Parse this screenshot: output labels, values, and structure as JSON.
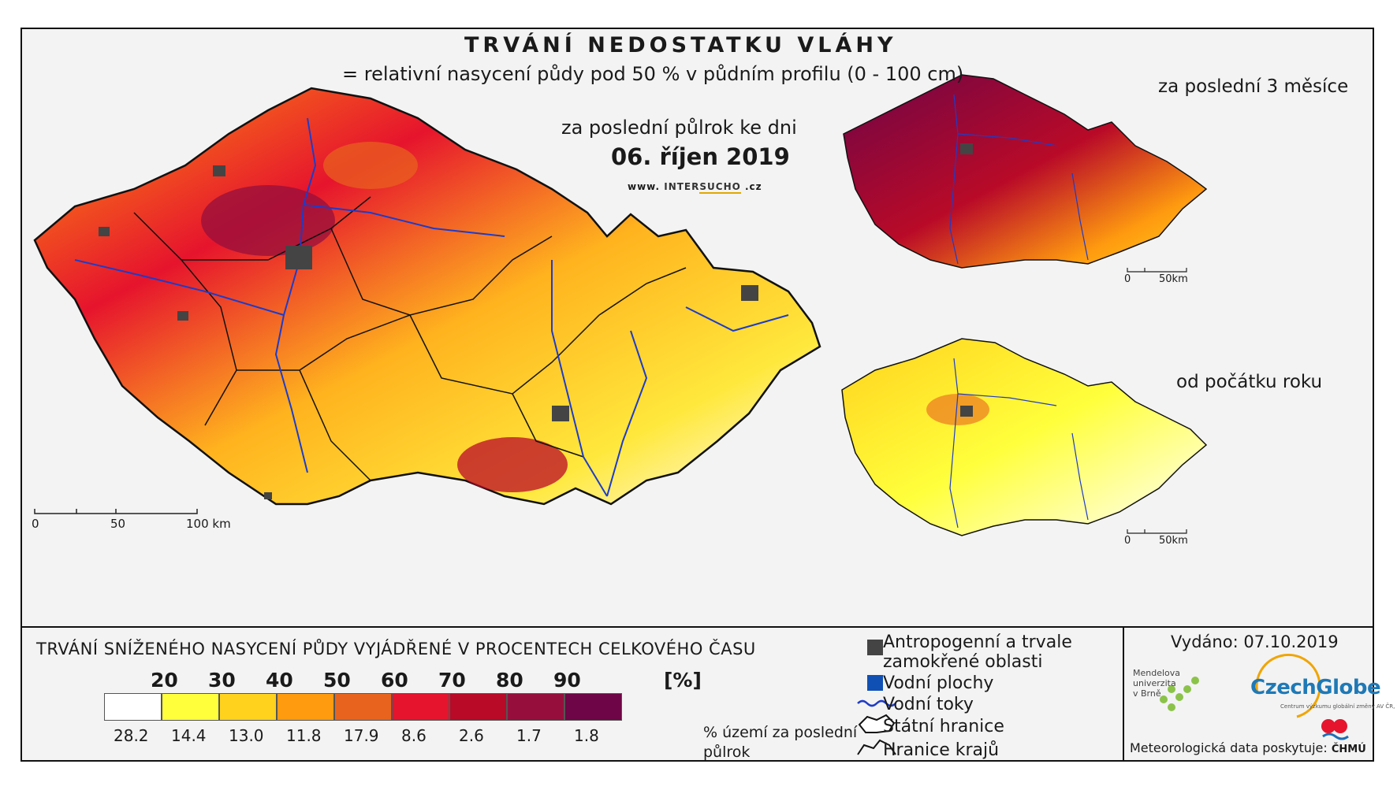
{
  "title": "TRVÁNÍ NEDOSTATKU VLÁHY",
  "subtitle": "= relativní nasycení půdy pod 50 % v půdním profilu (0 - 100 cm)",
  "period_label": "za poslední půlrok ke dni",
  "date": "06. říjen 2019",
  "website": {
    "prefix": "www. ",
    "brand_a": "INTER",
    "brand_b": "SUCHO",
    "suffix": " .cz"
  },
  "main_map": {
    "scale_ticks": [
      "0",
      "50",
      "100 km"
    ]
  },
  "insets": [
    {
      "title": "za poslední 3 měsíce",
      "scale_ticks": [
        "0",
        "50km"
      ]
    },
    {
      "title": "od počátku roku",
      "scale_ticks": [
        "0",
        "50km"
      ]
    }
  ],
  "legend": {
    "title": "TRVÁNÍ SNÍŽENÉHO NASYCENÍ PŮDY VYJÁDŘENÉ V PROCENTECH CELKOVÉHO ČASU",
    "thresholds": [
      "20",
      "30",
      "40",
      "50",
      "60",
      "70",
      "80",
      "90"
    ],
    "unit": "[%]",
    "classes": [
      {
        "color": "#ffffff",
        "share": "28.2"
      },
      {
        "color": "#ffff3c",
        "share": "14.4"
      },
      {
        "color": "#ffd21e",
        "share": "13.0"
      },
      {
        "color": "#ff9b0f",
        "share": "11.8"
      },
      {
        "color": "#e8641e",
        "share": "17.9"
      },
      {
        "color": "#e6142d",
        "share": "8.6"
      },
      {
        "color": "#b90a28",
        "share": "2.6"
      },
      {
        "color": "#960f3c",
        "share": "1.7"
      },
      {
        "color": "#6e0546",
        "share": "1.8"
      }
    ],
    "area_label": "% území za poslední půlrok"
  },
  "key": [
    {
      "icon": "urban-area-icon",
      "label_line1": "Antropogenní a trvale",
      "label_line2": "zamokřené oblasti"
    },
    {
      "icon": "water-body-icon",
      "label": "Vodní plochy"
    },
    {
      "icon": "river-icon",
      "label": "Vodní toky"
    },
    {
      "icon": "state-border-icon",
      "label": "Státní hranice"
    },
    {
      "icon": "region-border-icon",
      "label": "Hranice krajů"
    }
  ],
  "issued": "Vydáno: 07.10.2019",
  "logos": {
    "mendel": [
      "Mendelova",
      "univerzita",
      "v Brně"
    ],
    "czechglobe": "CzechGlobe",
    "czechglobe_sub": "Centrum výzkumu globální změny AV ČR, v. v. i.",
    "chmu": "ČHMÚ"
  },
  "met_data": "Meteorologická data poskytuje:",
  "colors": {
    "frame": "#f3f3f3",
    "river": "#1e3cc8",
    "urban": "#444444"
  }
}
